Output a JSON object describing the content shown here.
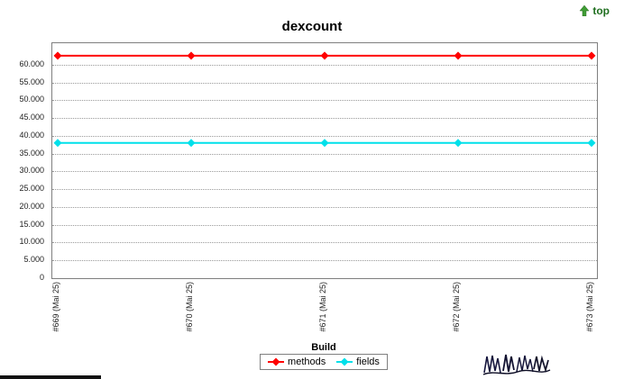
{
  "top_link": {
    "label": "top",
    "color": "#1f6e1f",
    "arrow_color": "#3f9c35"
  },
  "chart_data": {
    "type": "line",
    "title": "dexcount",
    "xlabel": "Build",
    "ylabel": "",
    "categories": [
      "#669 (Mai 25)",
      "#670 (Mai 25)",
      "#671 (Mai 25)",
      "#672 (Mai 25)",
      "#673 (Mai 25)"
    ],
    "series": [
      {
        "name": "methods",
        "color": "#ff0000",
        "values": [
          62500,
          62500,
          62500,
          62500,
          62500
        ]
      },
      {
        "name": "fields",
        "color": "#00e0ea",
        "values": [
          38000,
          38000,
          38000,
          38000,
          38000
        ]
      }
    ],
    "ylim": [
      0,
      66000
    ],
    "ytick_step": 5000,
    "ytick_labels": [
      "0",
      "5.000",
      "10.000",
      "15.000",
      "20.000",
      "25.000",
      "30.000",
      "35.000",
      "40.000",
      "45.000",
      "50.000",
      "55.000",
      "60.000"
    ],
    "grid": "horizontal-dotted",
    "legend_position": "bottom",
    "legend": [
      "methods",
      "fields"
    ]
  }
}
